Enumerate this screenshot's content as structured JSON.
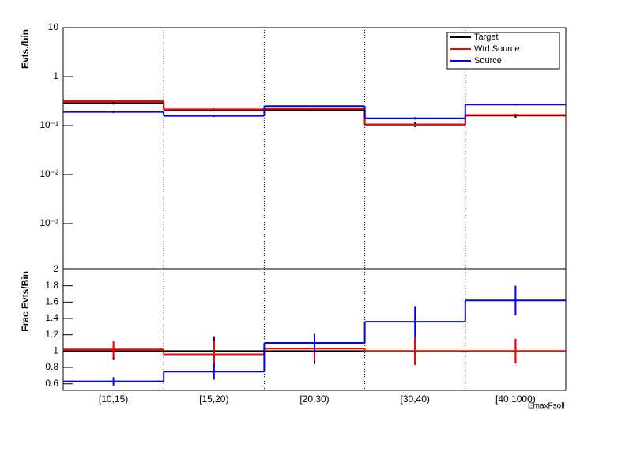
{
  "chart_data": [
    {
      "type": "step",
      "ylabel": "Evts./bin",
      "log_y": true,
      "xgrid": true,
      "legend": "top-right",
      "ylim": [
        0.00012,
        10
      ],
      "yticks": [
        {
          "value": 0.001,
          "label": "10⁻³"
        },
        {
          "value": 0.01,
          "label": "10⁻²"
        },
        {
          "value": 0.1,
          "label": "10⁻¹"
        },
        1,
        10
      ],
      "series": [
        {
          "name": "Target",
          "color": "#000000",
          "values": [
            0.29,
            0.21,
            0.21,
            0.105,
            0.16
          ],
          "errors": [
            0.02,
            0.015,
            0.015,
            0.012,
            0.015
          ]
        },
        {
          "name": "Wtd Source",
          "color": "#ff0000",
          "values": [
            0.316,
            0.215,
            0.22,
            0.104,
            0.165
          ]
        },
        {
          "name": "Source",
          "color": "#0000ff",
          "values": [
            0.19,
            0.158,
            0.25,
            0.141,
            0.27
          ],
          "errors": [
            0.01,
            0.008,
            0.01,
            0.008,
            0.01
          ]
        }
      ]
    },
    {
      "type": "step",
      "ylabel": "Frac Evts/Bin",
      "xlabel": "EmaxFsoll",
      "xgrid": true,
      "categories": [
        "[10,15)",
        "[15,20)",
        "[20,30)",
        "[30,40)",
        "[40,1000)"
      ],
      "ylim": [
        0.52,
        2
      ],
      "yticks": [
        0.6,
        0.8,
        1,
        1.2,
        1.4,
        1.6,
        1.8,
        2
      ],
      "series": [
        {
          "color": "#000000",
          "values": [
            1,
            1,
            1,
            1,
            1
          ],
          "errors": [
            0.1,
            0.18,
            0.16,
            0.17,
            0.15
          ]
        },
        {
          "color": "#ff0000",
          "values": [
            1.02,
            0.96,
            1.03,
            1.0,
            1.0
          ],
          "errors": [
            0.1,
            0.17,
            0.15,
            0.17,
            0.15
          ]
        },
        {
          "color": "#0000ff",
          "values": [
            0.63,
            0.75,
            1.1,
            1.36,
            1.62
          ],
          "errors": [
            0.05,
            0.1,
            0.11,
            0.19,
            0.18
          ]
        }
      ]
    }
  ]
}
